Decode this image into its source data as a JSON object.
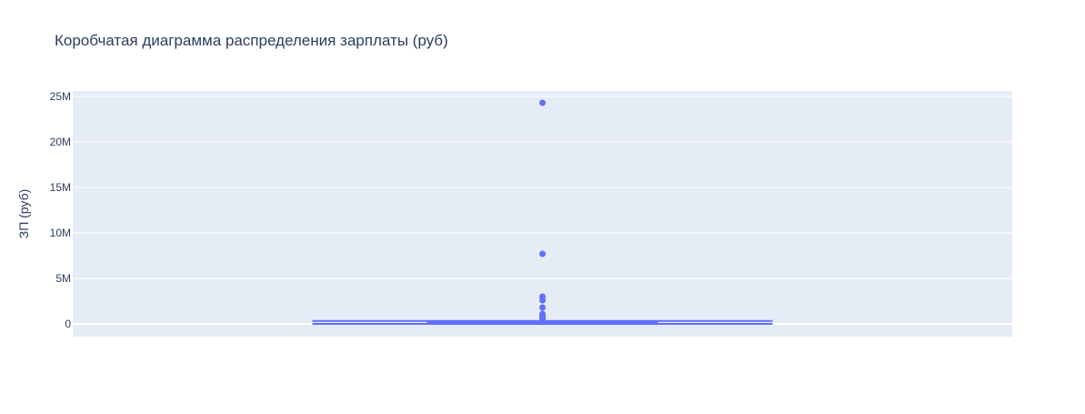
{
  "chart_data": {
    "type": "box",
    "title": "Коробчатая диаграмма распределения зарплаты (руб)",
    "xlabel": "",
    "ylabel": "ЗП (руб)",
    "ylim": [
      -1400000,
      25600000
    ],
    "yticks": [
      0,
      5000000,
      10000000,
      15000000,
      20000000,
      25000000
    ],
    "ytick_labels": [
      "0",
      "5M",
      "10M",
      "15M",
      "20M",
      "25M"
    ],
    "grid": true,
    "legend": "none",
    "color": "#636efa",
    "plot_bg": "#e5ecf6",
    "box": {
      "min": 0,
      "q1": 40000,
      "median": 80000,
      "q3": 160000,
      "max": 330000
    },
    "outliers": [
      24300000,
      7700000,
      3000000,
      2600000,
      1800000,
      1100000,
      900000,
      750000,
      600000,
      500000,
      420000,
      360000
    ]
  }
}
